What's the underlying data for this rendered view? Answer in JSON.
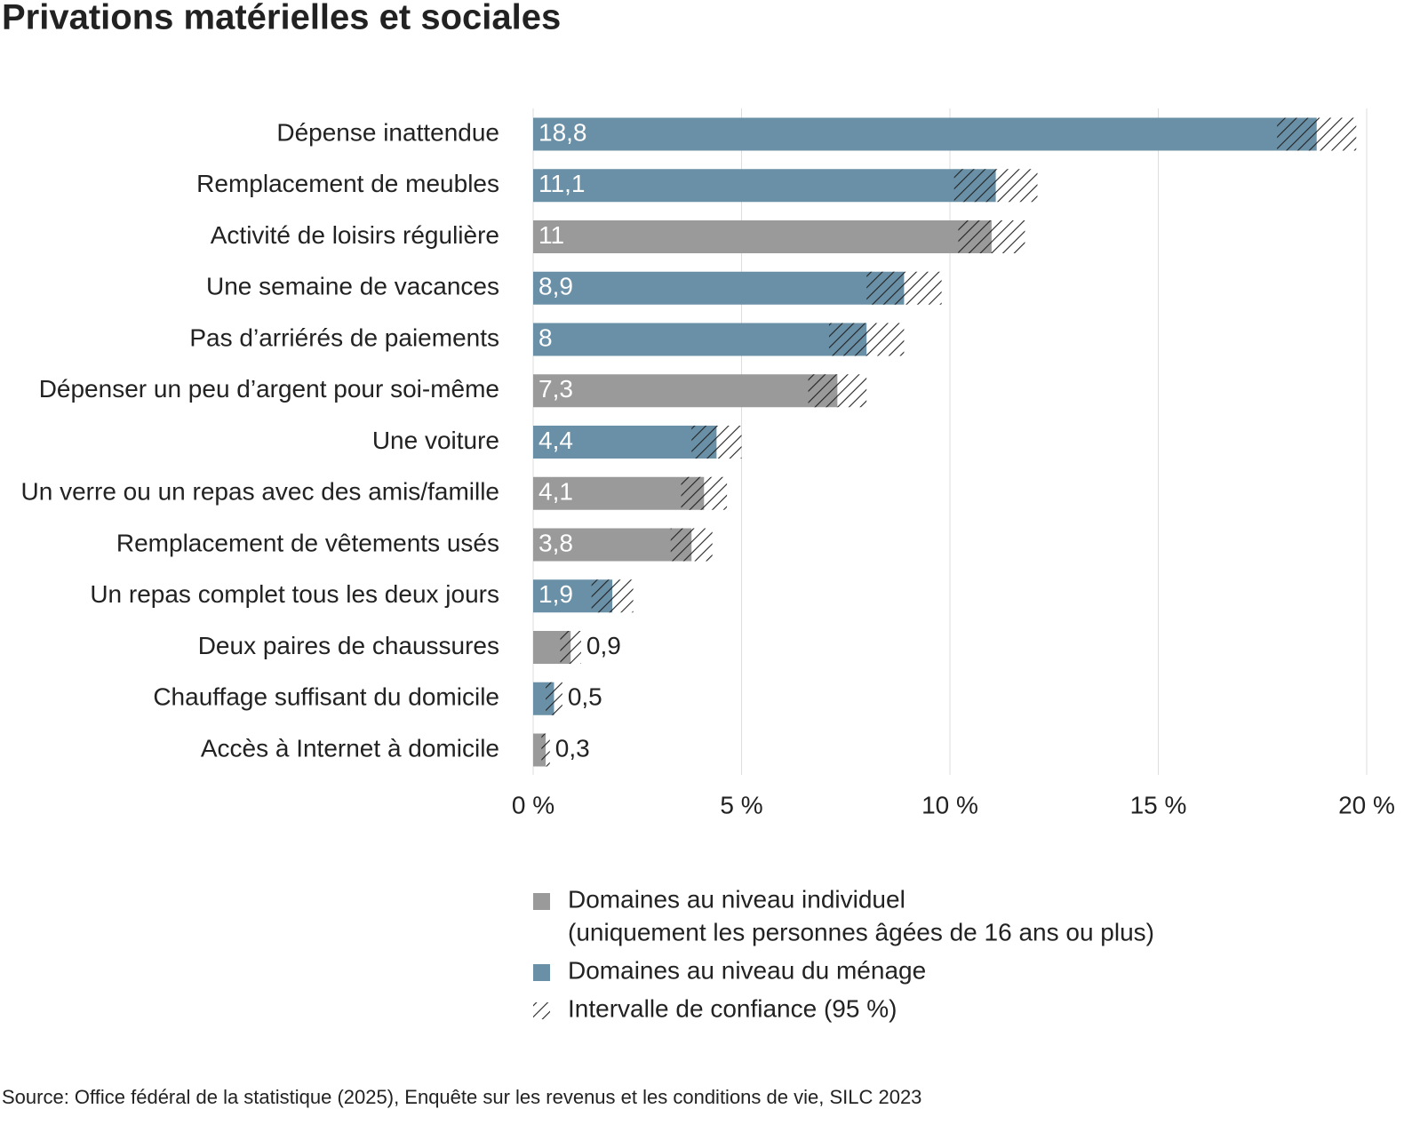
{
  "chart_data": {
    "type": "bar",
    "orientation": "horizontal",
    "title": "Privations matérielles et sociales",
    "categories": [
      "Dépense inattendue",
      "Remplacement de meubles",
      "Activité de loisirs régulière",
      "Une semaine de vacances",
      "Pas d’arriérés de paiements",
      "Dépenser un peu d’argent pour soi-même",
      "Une voiture",
      "Un verre ou un repas avec des amis/famille",
      "Remplacement de vêtements usés",
      "Un repas complet tous les deux jours",
      "Deux paires de chaussures",
      "Chauffage suffisant du domicile",
      "Accès à Internet à domicile"
    ],
    "values": [
      18.8,
      11.1,
      11,
      8.9,
      8,
      7.3,
      4.4,
      4.1,
      3.8,
      1.9,
      0.9,
      0.5,
      0.3
    ],
    "value_labels": [
      "18,8",
      "11,1",
      "11",
      "8,9",
      "8",
      "7,3",
      "4,4",
      "4,1",
      "3,8",
      "1,9",
      "0,9",
      "0,5",
      "0,3"
    ],
    "errors": [
      0.95,
      1.0,
      0.8,
      0.9,
      0.9,
      0.7,
      0.6,
      0.55,
      0.5,
      0.5,
      0.25,
      0.2,
      0.1
    ],
    "colors": [
      "#6990a6",
      "#6990a6",
      "#9a9a9a",
      "#6990a6",
      "#6990a6",
      "#9a9a9a",
      "#6990a6",
      "#9a9a9a",
      "#9a9a9a",
      "#6990a6",
      "#9a9a9a",
      "#6990a6",
      "#9a9a9a"
    ],
    "xlim": [
      0,
      20
    ],
    "xticks": [
      {
        "value": 0,
        "label": "0 %"
      },
      {
        "value": 5,
        "label": "5 %"
      },
      {
        "value": 10,
        "label": "10 %"
      },
      {
        "value": 15,
        "label": "15 %"
      },
      {
        "value": 20,
        "label": "20 %"
      }
    ],
    "grid": true,
    "legend": [
      {
        "lines": [
          "Domaines au niveau individuel",
          "(uniquement les personnes âgées de 16 ans ou plus)"
        ],
        "color": "#9a9a9a"
      },
      {
        "lines": [
          "Domaines au niveau du ménage"
        ],
        "color": "#6990a6"
      },
      {
        "lines": [
          "Intervalle de confiance (95 %)"
        ],
        "hatch": true
      }
    ],
    "source": "Source: Office fédéral de la statistique (2025), Enquête sur les revenus et les conditions de vie, SILC 2023"
  }
}
